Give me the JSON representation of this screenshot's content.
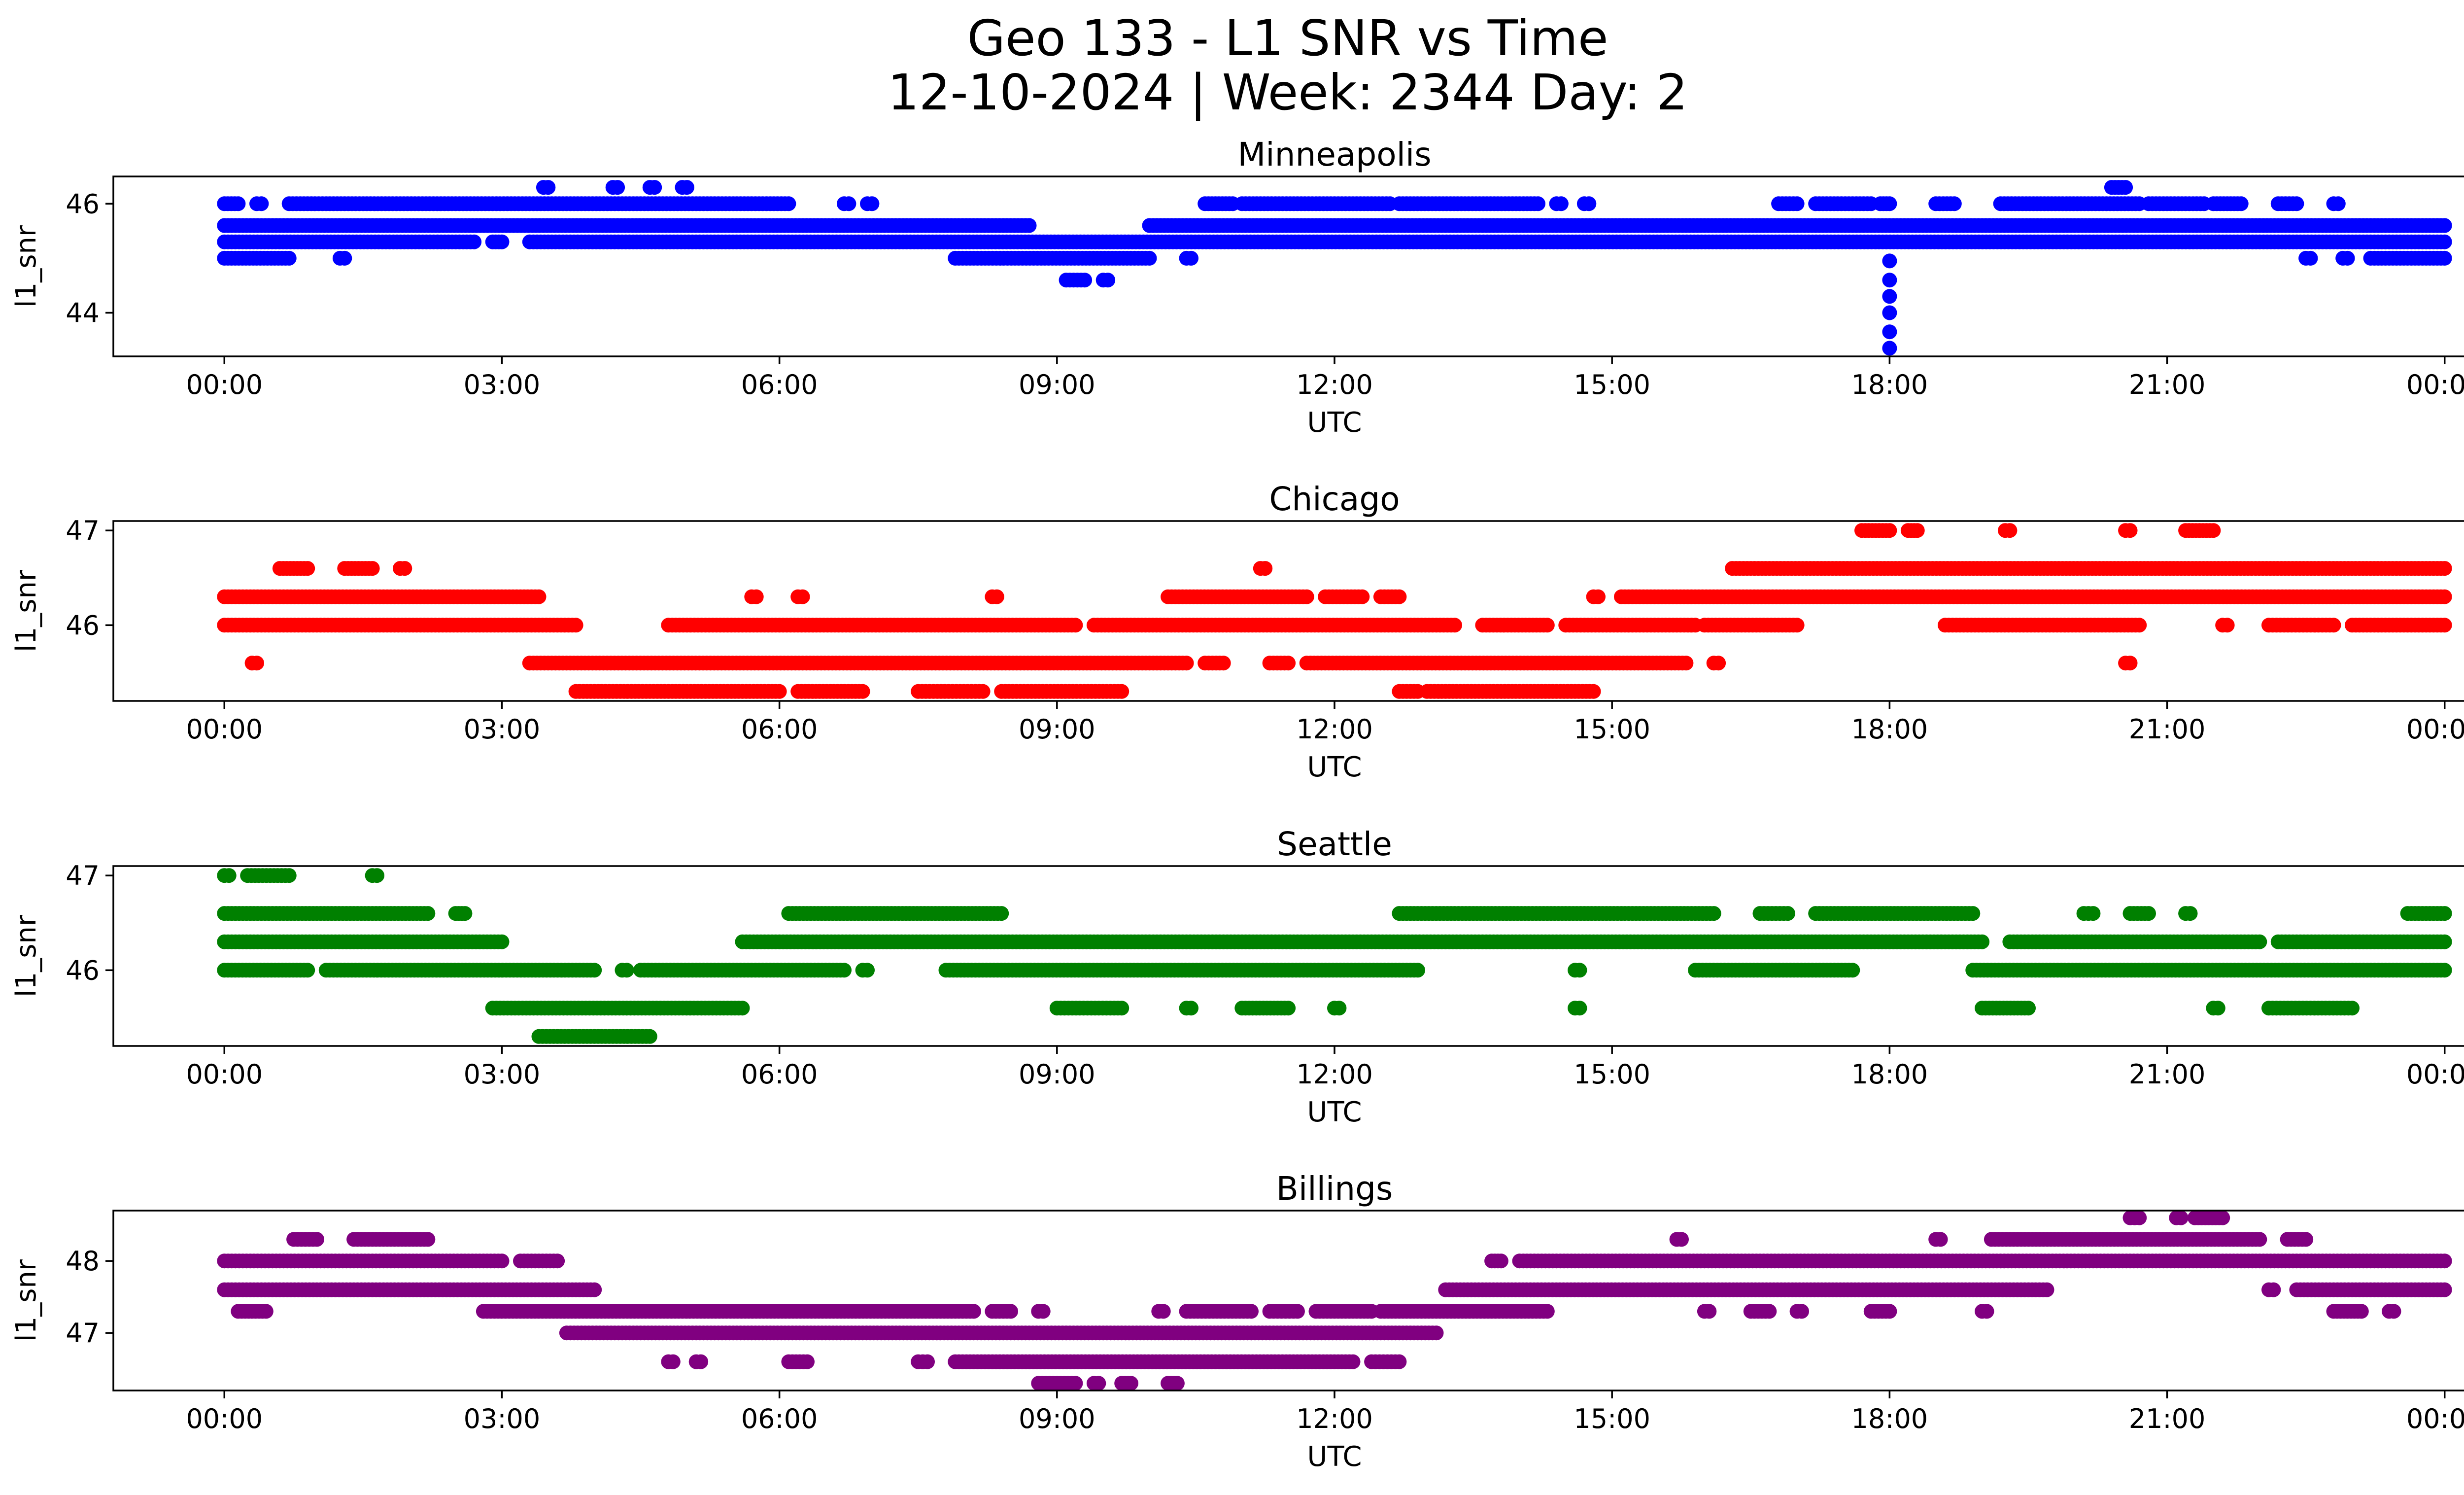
{
  "figure": {
    "title_line1": "Geo 133 - L1 SNR vs Time",
    "title_line2": "12-10-2024 | Week: 2344 Day: 2"
  },
  "chart_data": [
    {
      "type": "scatter",
      "title": "Minneapolis",
      "xlabel": "UTC",
      "ylabel": "l1_snr",
      "color": "#0000ff",
      "xlim": [
        -1.2,
        25.2
      ],
      "ylim": [
        43.2,
        46.5
      ],
      "xticks": [
        0,
        3,
        6,
        9,
        12,
        15,
        18,
        21,
        24
      ],
      "xtick_labels": [
        "00:00",
        "03:00",
        "06:00",
        "09:00",
        "12:00",
        "15:00",
        "18:00",
        "21:00",
        "00:00"
      ],
      "yticks": [
        44,
        46
      ],
      "ytick_labels": [
        "44",
        "46"
      ],
      "bands": [
        {
          "y": 46.3,
          "segments": [
            [
              3.45,
              3.5
            ],
            [
              4.2,
              4.25
            ],
            [
              4.6,
              4.65
            ],
            [
              4.95,
              5.0
            ],
            [
              20.4,
              20.55
            ]
          ]
        },
        {
          "y": 46.0,
          "segments": [
            [
              0.0,
              0.15
            ],
            [
              0.35,
              0.4
            ],
            [
              0.7,
              6.1
            ],
            [
              6.7,
              6.75
            ],
            [
              6.95,
              7.0
            ],
            [
              10.6,
              10.9
            ],
            [
              11.0,
              12.6
            ],
            [
              12.7,
              14.2
            ],
            [
              14.4,
              14.45
            ],
            [
              14.7,
              14.75
            ],
            [
              16.8,
              17.0
            ],
            [
              17.2,
              17.8
            ],
            [
              17.9,
              18.0
            ],
            [
              18.5,
              18.7
            ],
            [
              19.2,
              20.7
            ],
            [
              20.8,
              21.4
            ],
            [
              21.5,
              21.8
            ],
            [
              22.2,
              22.4
            ],
            [
              22.8,
              22.85
            ]
          ]
        },
        {
          "y": 45.6,
          "segments": [
            [
              0.0,
              8.7
            ],
            [
              10.0,
              24.0
            ]
          ]
        },
        {
          "y": 45.3,
          "segments": [
            [
              0.0,
              2.7
            ],
            [
              2.9,
              3.0
            ],
            [
              3.3,
              24.0
            ]
          ]
        },
        {
          "y": 45.0,
          "segments": [
            [
              0.0,
              0.7
            ],
            [
              1.25,
              1.3
            ],
            [
              7.9,
              10.0
            ],
            [
              10.4,
              10.45
            ],
            [
              22.5,
              22.55
            ],
            [
              22.9,
              22.95
            ],
            [
              23.2,
              24.0
            ]
          ]
        },
        {
          "y": 44.6,
          "segments": [
            [
              9.1,
              9.3
            ],
            [
              9.5,
              9.55
            ]
          ]
        }
      ],
      "vertical_points": {
        "x": 18.0,
        "y": [
          44.95,
          44.6,
          44.3,
          44.0,
          43.65,
          43.35
        ]
      }
    },
    {
      "type": "scatter",
      "title": "Chicago",
      "xlabel": "UTC",
      "ylabel": "l1_snr",
      "color": "#ff0000",
      "xlim": [
        -1.2,
        25.2
      ],
      "ylim": [
        45.2,
        47.1
      ],
      "xticks": [
        0,
        3,
        6,
        9,
        12,
        15,
        18,
        21,
        24
      ],
      "xtick_labels": [
        "00:00",
        "03:00",
        "06:00",
        "09:00",
        "12:00",
        "15:00",
        "18:00",
        "21:00",
        "00:00"
      ],
      "yticks": [
        46,
        47
      ],
      "ytick_labels": [
        "46",
        "47"
      ],
      "bands": [
        {
          "y": 47.0,
          "segments": [
            [
              17.7,
              18.0
            ],
            [
              18.2,
              18.3
            ],
            [
              19.25,
              19.3
            ],
            [
              20.55,
              20.6
            ],
            [
              21.2,
              21.5
            ]
          ]
        },
        {
          "y": 46.6,
          "segments": [
            [
              0.6,
              0.9
            ],
            [
              1.3,
              1.6
            ],
            [
              1.9,
              1.95
            ],
            [
              11.2,
              11.25
            ],
            [
              16.3,
              24.0
            ]
          ]
        },
        {
          "y": 46.3,
          "segments": [
            [
              0.0,
              3.4
            ],
            [
              5.7,
              5.75
            ],
            [
              6.2,
              6.25
            ],
            [
              8.3,
              8.35
            ],
            [
              10.2,
              11.7
            ],
            [
              11.9,
              12.3
            ],
            [
              12.5,
              12.7
            ],
            [
              14.8,
              14.85
            ],
            [
              15.1,
              24.0
            ]
          ]
        },
        {
          "y": 46.0,
          "segments": [
            [
              0.0,
              3.8
            ],
            [
              4.8,
              9.2
            ],
            [
              9.4,
              13.3
            ],
            [
              13.6,
              14.3
            ],
            [
              14.5,
              15.9
            ],
            [
              16.0,
              17.0
            ],
            [
              18.6,
              20.7
            ],
            [
              21.6,
              21.65
            ],
            [
              22.1,
              22.8
            ],
            [
              23.0,
              24.0
            ]
          ]
        },
        {
          "y": 45.6,
          "segments": [
            [
              0.3,
              0.35
            ],
            [
              3.3,
              10.4
            ],
            [
              10.6,
              10.8
            ],
            [
              11.3,
              11.5
            ],
            [
              11.7,
              15.8
            ],
            [
              16.1,
              16.15
            ],
            [
              20.55,
              20.6
            ]
          ]
        },
        {
          "y": 45.3,
          "segments": [
            [
              3.8,
              6.0
            ],
            [
              6.2,
              6.9
            ],
            [
              7.5,
              8.2
            ],
            [
              8.4,
              9.7
            ],
            [
              12.7,
              12.9
            ],
            [
              13.0,
              14.8
            ]
          ]
        }
      ]
    },
    {
      "type": "scatter",
      "title": "Seattle",
      "xlabel": "UTC",
      "ylabel": "l1_snr",
      "color": "#008000",
      "xlim": [
        -1.2,
        25.2
      ],
      "ylim": [
        45.2,
        47.1
      ],
      "xticks": [
        0,
        3,
        6,
        9,
        12,
        15,
        18,
        21,
        24
      ],
      "xtick_labels": [
        "00:00",
        "03:00",
        "06:00",
        "09:00",
        "12:00",
        "15:00",
        "18:00",
        "21:00",
        "00:00"
      ],
      "yticks": [
        46,
        47
      ],
      "ytick_labels": [
        "46",
        "47"
      ],
      "bands": [
        {
          "y": 47.0,
          "segments": [
            [
              0.0,
              0.05
            ],
            [
              0.25,
              0.7
            ],
            [
              1.6,
              1.65
            ]
          ]
        },
        {
          "y": 46.6,
          "segments": [
            [
              0.0,
              2.2
            ],
            [
              2.5,
              2.6
            ],
            [
              6.1,
              8.4
            ],
            [
              12.7,
              16.1
            ],
            [
              16.6,
              16.9
            ],
            [
              17.2,
              18.9
            ],
            [
              20.1,
              20.2
            ],
            [
              20.6,
              20.8
            ],
            [
              21.2,
              21.25
            ],
            [
              23.6,
              24.0
            ]
          ]
        },
        {
          "y": 46.3,
          "segments": [
            [
              0.0,
              3.0
            ],
            [
              5.6,
              19.0
            ],
            [
              19.3,
              22.0
            ],
            [
              22.2,
              24.0
            ]
          ]
        },
        {
          "y": 46.0,
          "segments": [
            [
              0.0,
              0.9
            ],
            [
              1.1,
              4.0
            ],
            [
              4.3,
              4.35
            ],
            [
              4.5,
              6.7
            ],
            [
              6.9,
              6.95
            ],
            [
              7.8,
              12.9
            ],
            [
              14.6,
              14.65
            ],
            [
              15.9,
              17.6
            ],
            [
              18.9,
              24.0
            ]
          ]
        },
        {
          "y": 45.6,
          "segments": [
            [
              2.9,
              5.6
            ],
            [
              9.0,
              9.7
            ],
            [
              10.4,
              10.45
            ],
            [
              11.0,
              11.5
            ],
            [
              12.0,
              12.05
            ],
            [
              14.6,
              14.65
            ],
            [
              19.0,
              19.5
            ],
            [
              21.5,
              21.55
            ],
            [
              22.1,
              23.0
            ]
          ]
        },
        {
          "y": 45.3,
          "segments": [
            [
              3.4,
              4.6
            ]
          ]
        }
      ]
    },
    {
      "type": "scatter",
      "title": "Billings",
      "xlabel": "UTC",
      "ylabel": "l1_snr",
      "color": "#800080",
      "xlim": [
        -1.2,
        25.2
      ],
      "ylim": [
        46.2,
        48.7
      ],
      "xticks": [
        0,
        3,
        6,
        9,
        12,
        15,
        18,
        21,
        24
      ],
      "xtick_labels": [
        "00:00",
        "03:00",
        "06:00",
        "09:00",
        "12:00",
        "15:00",
        "18:00",
        "21:00",
        "00:00"
      ],
      "yticks": [
        47,
        48
      ],
      "ytick_labels": [
        "47",
        "48"
      ],
      "bands": [
        {
          "y": 48.6,
          "segments": [
            [
              20.6,
              20.7
            ],
            [
              21.1,
              21.15
            ],
            [
              21.3,
              21.6
            ]
          ]
        },
        {
          "y": 48.3,
          "segments": [
            [
              0.75,
              1.0
            ],
            [
              1.4,
              2.2
            ],
            [
              15.7,
              15.75
            ],
            [
              18.5,
              18.55
            ],
            [
              19.1,
              22.0
            ],
            [
              22.3,
              22.5
            ]
          ]
        },
        {
          "y": 48.0,
          "segments": [
            [
              0.0,
              3.0
            ],
            [
              3.2,
              3.6
            ],
            [
              13.7,
              13.8
            ],
            [
              14.0,
              24.0
            ]
          ]
        },
        {
          "y": 47.6,
          "segments": [
            [
              0.0,
              4.0
            ],
            [
              13.2,
              19.7
            ],
            [
              22.1,
              22.15
            ],
            [
              22.4,
              24.0
            ]
          ]
        },
        {
          "y": 47.3,
          "segments": [
            [
              0.15,
              0.45
            ],
            [
              2.8,
              8.1
            ],
            [
              8.3,
              8.5
            ],
            [
              8.8,
              8.85
            ],
            [
              10.1,
              10.15
            ],
            [
              10.4,
              11.1
            ],
            [
              11.3,
              11.6
            ],
            [
              11.8,
              12.4
            ],
            [
              12.5,
              14.3
            ],
            [
              16.0,
              16.05
            ],
            [
              16.5,
              16.7
            ],
            [
              17.0,
              17.05
            ],
            [
              17.8,
              18.0
            ],
            [
              19.0,
              19.05
            ],
            [
              22.8,
              23.1
            ],
            [
              23.4,
              23.45
            ]
          ]
        },
        {
          "y": 47.0,
          "segments": [
            [
              3.7,
              13.1
            ]
          ]
        },
        {
          "y": 46.6,
          "segments": [
            [
              4.8,
              4.85
            ],
            [
              5.1,
              5.15
            ],
            [
              6.1,
              6.3
            ],
            [
              7.5,
              7.6
            ],
            [
              7.9,
              12.2
            ],
            [
              12.4,
              12.7
            ]
          ]
        },
        {
          "y": 46.3,
          "segments": [
            [
              8.8,
              9.2
            ],
            [
              9.4,
              9.45
            ],
            [
              9.7,
              9.8
            ],
            [
              10.2,
              10.3
            ]
          ]
        }
      ]
    }
  ]
}
